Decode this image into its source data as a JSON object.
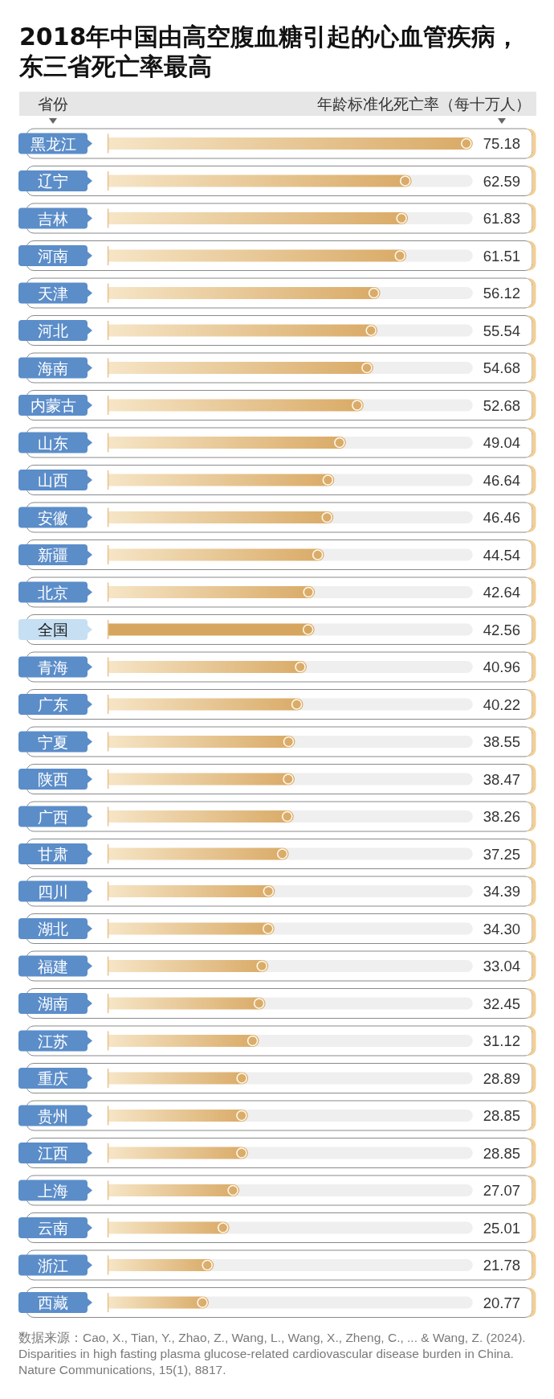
{
  "chart_data": {
    "type": "bar",
    "orientation": "horizontal",
    "marker": "circle",
    "title": "2018年中国由高空腹血糖引起的心血管疾病，东三省死亡率最高",
    "ylabel": "省份",
    "xlabel": "年龄标准化死亡率（每十万人）",
    "categories": [
      "黑龙江",
      "辽宁",
      "吉林",
      "河南",
      "天津",
      "河北",
      "海南",
      "内蒙古",
      "山东",
      "山西",
      "安徽",
      "新疆",
      "北京",
      "全国",
      "青海",
      "广东",
      "宁夏",
      "陕西",
      "广西",
      "甘肃",
      "四川",
      "湖北",
      "福建",
      "湖南",
      "江苏",
      "重庆",
      "贵州",
      "江西",
      "上海",
      "云南",
      "浙江",
      "西藏"
    ],
    "values": [
      75.18,
      62.59,
      61.83,
      61.51,
      56.12,
      55.54,
      54.68,
      52.68,
      49.04,
      46.64,
      46.46,
      44.54,
      42.64,
      42.56,
      40.96,
      40.22,
      38.55,
      38.47,
      38.26,
      37.25,
      34.39,
      34.3,
      33.04,
      32.45,
      31.12,
      28.89,
      28.85,
      28.85,
      27.07,
      25.01,
      21.78,
      20.77
    ],
    "value_labels": [
      "75.18",
      "62.59",
      "61.83",
      "61.51",
      "56.12",
      "55.54",
      "54.68",
      "52.68",
      "49.04",
      "46.64",
      "46.46",
      "44.54",
      "42.64",
      "42.56",
      "40.96",
      "40.22",
      "38.55",
      "38.47",
      "38.26",
      "37.25",
      "34.39",
      "34.30",
      "33.04",
      "32.45",
      "31.12",
      "28.89",
      "28.85",
      "28.85",
      "27.07",
      "25.01",
      "21.78",
      "20.77"
    ],
    "color": "#d9aa66",
    "colors": [
      "#d9aa66",
      "#d9aa66",
      "#d9aa66",
      "#d9aa66",
      "#d9aa66",
      "#d9aa66",
      "#d9aa66",
      "#d9aa66",
      "#d9aa66",
      "#d9aa66",
      "#d9aa66",
      "#d9aa66",
      "#d9aa66",
      "#d6a65e",
      "#d9aa66",
      "#d9aa66",
      "#d9aa66",
      "#d9aa66",
      "#d9aa66",
      "#d9aa66",
      "#d9aa66",
      "#d9aa66",
      "#d9aa66",
      "#d9aa66",
      "#d9aa66",
      "#d9aa66",
      "#d9aa66",
      "#d9aa66",
      "#d9aa66",
      "#d9aa66",
      "#d9aa66",
      "#d9aa66"
    ],
    "annotations": [
      "数据来源：Cao, X., Tian, Y., Zhao, Z., Wang, L., Wang, X., Zheng, C., ... & Wang, Z. (2024). Disparities in high fasting plasma glucose-related cardiovascular disease burden in China. Nature Communications, 15(1), 8817."
    ]
  }
}
